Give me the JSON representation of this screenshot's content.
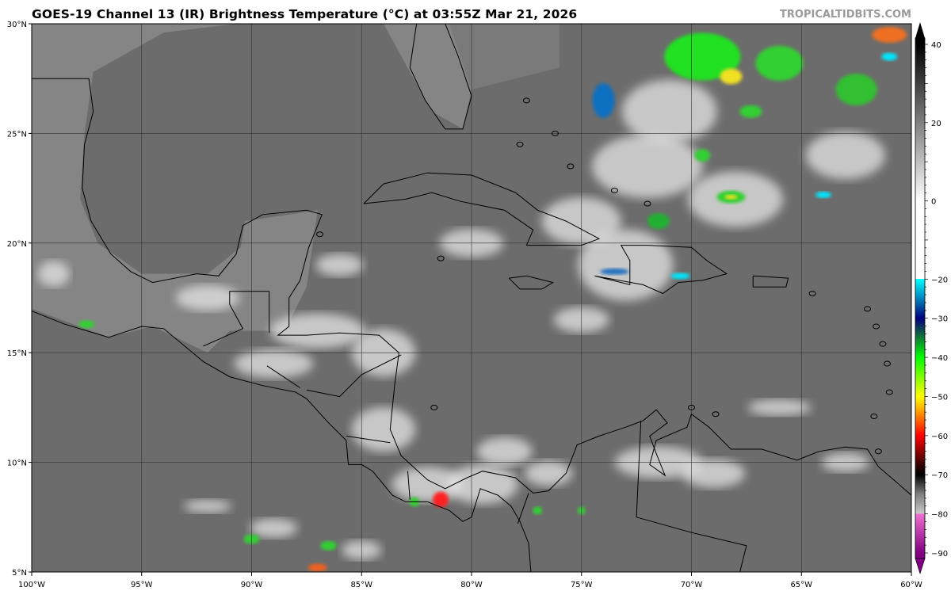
{
  "title": "GOES-19 Channel 13 (IR) Brightness Temperature (°C) at 03:55Z Mar 21, 2026",
  "brand": "TROPICALTIDBITS.COM",
  "map": {
    "lon_range": [
      -100,
      -60
    ],
    "lat_range": [
      5,
      30
    ],
    "lat_labels": [
      "30°N",
      "25°N",
      "20°N",
      "15°N",
      "10°N",
      "5°N"
    ],
    "lon_labels": [
      "100°W",
      "95°W",
      "90°W",
      "85°W",
      "80°W",
      "75°W",
      "70°W",
      "65°W",
      "60°W"
    ],
    "gridlines": true
  },
  "colorbar": {
    "min": -90,
    "max": 40,
    "ticks": [
      "40",
      "20",
      "0",
      "−20",
      "−30",
      "−40",
      "−50",
      "−60",
      "−70",
      "−80",
      "−90"
    ],
    "tick_values": [
      40,
      20,
      0,
      -20,
      -30,
      -40,
      -50,
      -60,
      -70,
      -80,
      -90
    ],
    "colors": {
      "warm_black": "#000000",
      "zero_white": "#ffffff",
      "cyan": "#00ffff",
      "blue": "#0050a0",
      "navy": "#000080",
      "green": "#00ff00",
      "yellow": "#ffff00",
      "orange": "#ff8000",
      "red": "#ff0000",
      "dark_red": "#400000",
      "gray": "#c8c8c8",
      "pink": "#f070d0",
      "purple": "#800080"
    }
  }
}
